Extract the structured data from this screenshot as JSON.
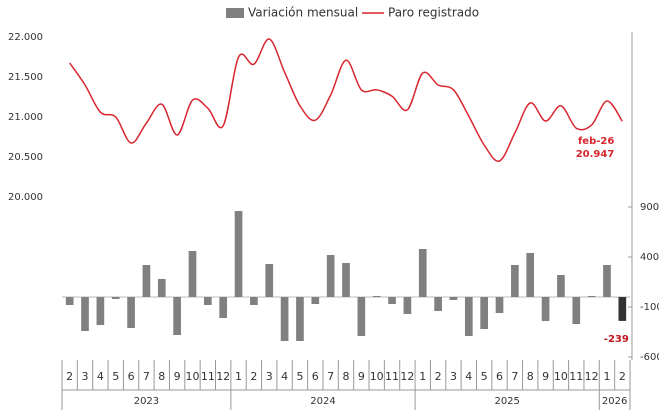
{
  "chart_data": {
    "type": "bar-line",
    "categories": [
      "2",
      "3",
      "4",
      "5",
      "6",
      "7",
      "8",
      "9",
      "10",
      "11",
      "12",
      "1",
      "2",
      "3",
      "4",
      "5",
      "6",
      "7",
      "8",
      "9",
      "10",
      "11",
      "12",
      "1",
      "2",
      "3",
      "4",
      "5",
      "6",
      "7",
      "8",
      "9",
      "10",
      "11",
      "12",
      "1",
      "2"
    ],
    "year_groups": [
      "2023",
      "2024",
      "2025",
      "2026"
    ],
    "series": [
      {
        "name": "Variación mensual",
        "type": "bar",
        "axis": "y2",
        "color": "#808080",
        "highlight_color": "#333333",
        "values": [
          -80,
          -340,
          -280,
          -20,
          -310,
          320,
          180,
          -380,
          460,
          -80,
          -210,
          860,
          -80,
          330,
          -440,
          -440,
          -70,
          420,
          340,
          -390,
          10,
          -70,
          -170,
          480,
          -140,
          -30,
          -390,
          -320,
          -160,
          320,
          440,
          -240,
          220,
          -270,
          10,
          320,
          -239
        ],
        "value_labels": [
          null,
          null,
          null,
          null,
          null,
          null,
          null,
          null,
          null,
          null,
          null,
          null,
          null,
          null,
          null,
          null,
          null,
          null,
          null,
          null,
          null,
          null,
          null,
          null,
          null,
          null,
          null,
          null,
          null,
          null,
          null,
          null,
          null,
          null,
          null,
          null,
          "-239"
        ]
      },
      {
        "name": "Paro registrado",
        "type": "line",
        "color": "#d7262f",
        "values": [
          21675,
          21400,
          21060,
          21000,
          20675,
          20925,
          21160,
          20775,
          21210,
          21110,
          20890,
          21750,
          21660,
          21975,
          21560,
          21140,
          20960,
          21275,
          21710,
          21340,
          21340,
          21260,
          21090,
          21550,
          21400,
          21340,
          21010,
          20650,
          20450,
          20800,
          21175,
          20950,
          21140,
          20860,
          20900,
          21200,
          20947
        ],
        "value_labels": [
          null,
          null,
          null,
          null,
          null,
          null,
          null,
          null,
          null,
          null,
          null,
          null,
          null,
          null,
          null,
          null,
          null,
          null,
          null,
          null,
          null,
          null,
          null,
          null,
          null,
          null,
          null,
          null,
          null,
          null,
          null,
          null,
          null,
          null,
          null,
          null,
          "20.947"
        ]
      }
    ],
    "annotation": "feb-26",
    "ylim": [
      18000,
      22000
    ],
    "yticks": [
      {
        "value": 20000,
        "label": "20.000"
      },
      {
        "value": 20500,
        "label": "20.500"
      },
      {
        "value": 21000,
        "label": "21.000"
      },
      {
        "value": 21500,
        "label": "21.500"
      },
      {
        "value": 22000,
        "label": "22.000"
      }
    ],
    "y2lim": [
      -600,
      2600
    ],
    "y2ticks": [
      -600,
      -100,
      400,
      900
    ],
    "legend": "top"
  }
}
